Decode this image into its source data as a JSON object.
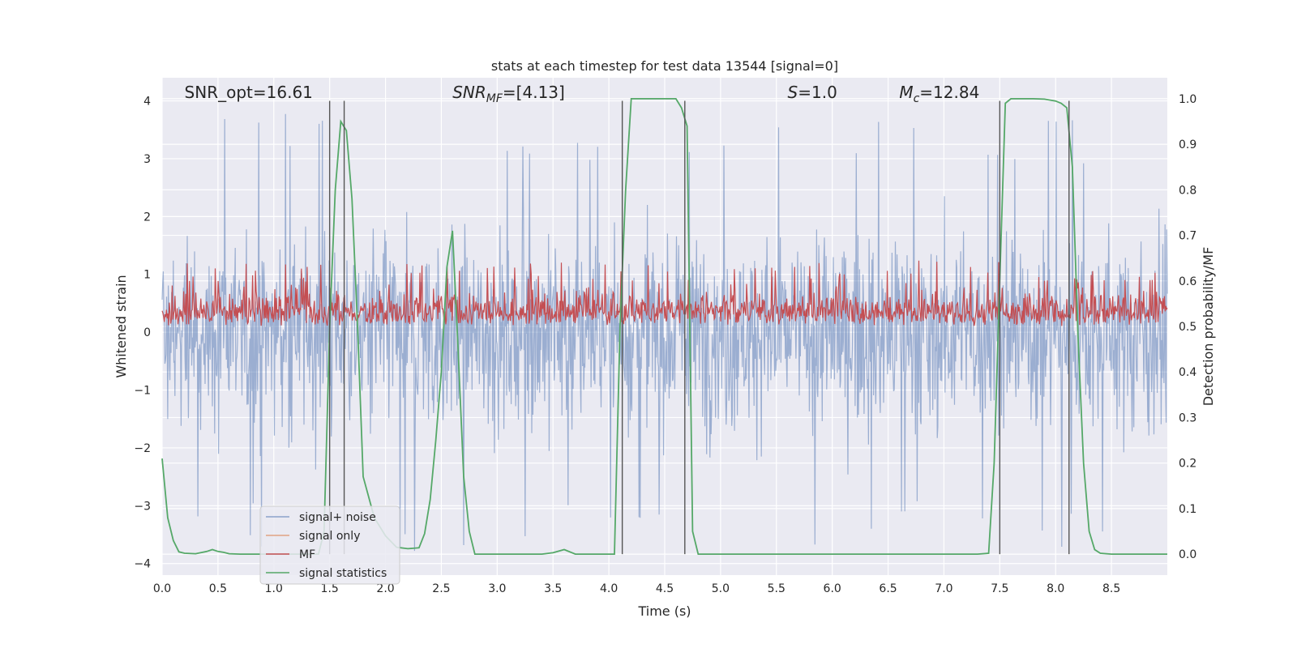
{
  "chart_data": {
    "type": "line",
    "title": "stats at each timestep for test data 13544 [signal=0]",
    "xlabel": "Time (s)",
    "ylabel_left": "Whitened strain",
    "ylabel_right": "Detection probability/MF",
    "xlim": [
      0.0,
      9.0
    ],
    "ylim_left": [
      -4.2,
      4.4
    ],
    "ylim_right": [
      -0.046,
      1.046
    ],
    "x_ticks": [
      "0.0",
      "0.5",
      "1.0",
      "1.5",
      "2.0",
      "2.5",
      "3.0",
      "3.5",
      "4.0",
      "4.5",
      "5.0",
      "5.5",
      "6.0",
      "6.5",
      "7.0",
      "7.5",
      "8.0",
      "8.5"
    ],
    "y_left_ticks": [
      "4",
      "3",
      "2",
      "1",
      "0",
      "−1",
      "−2",
      "−3",
      "−4"
    ],
    "y_right_ticks": [
      "1.0",
      "0.9",
      "0.8",
      "0.7",
      "0.6",
      "0.5",
      "0.4",
      "0.3",
      "0.2",
      "0.1",
      "0.0"
    ],
    "annotations": [
      {
        "text": "SNR_opt=16.61",
        "x": 0.2,
        "y": 4.15,
        "italic": false
      },
      {
        "text": "SNR_MF=[4.13]",
        "x": 2.6,
        "y": 4.15,
        "italic": true
      },
      {
        "text": "S=1.0",
        "x": 5.6,
        "y": 4.15,
        "italic": true
      },
      {
        "text": "M_c=12.84",
        "x": 6.6,
        "y": 4.15,
        "italic": true
      }
    ],
    "vertical_lines": [
      1.5,
      1.63,
      4.12,
      4.68,
      7.5,
      8.12
    ],
    "series": [
      {
        "name": "signal+ noise",
        "color": "#4c72b0",
        "alpha": 0.5,
        "axis": "left",
        "description": "whitened noise, amplitude roughly ±2.5, peaks to ±3.8"
      },
      {
        "name": "signal only",
        "color": "#dd8452",
        "axis": "left",
        "values": []
      },
      {
        "name": "MF",
        "color": "#c44e52",
        "axis": "right",
        "description": "matched filter output between 0.5 and 0.64"
      },
      {
        "name": "signal statistics",
        "color": "#55a868",
        "axis": "right",
        "x": [
          0.0,
          0.05,
          0.1,
          0.15,
          0.2,
          0.3,
          0.4,
          0.45,
          0.5,
          0.55,
          0.6,
          0.7,
          0.8,
          0.9,
          1.0,
          1.1,
          1.2,
          1.3,
          1.4,
          1.45,
          1.5,
          1.55,
          1.6,
          1.65,
          1.7,
          1.75,
          1.8,
          1.9,
          2.0,
          2.1,
          2.2,
          2.3,
          2.35,
          2.4,
          2.45,
          2.5,
          2.55,
          2.6,
          2.65,
          2.7,
          2.75,
          2.8,
          2.9,
          3.0,
          3.2,
          3.4,
          3.5,
          3.6,
          3.7,
          3.75,
          3.8,
          3.9,
          4.0,
          4.05,
          4.1,
          4.15,
          4.2,
          4.3,
          4.4,
          4.5,
          4.6,
          4.65,
          4.7,
          4.75,
          4.8,
          4.9,
          5.0,
          5.5,
          6.0,
          6.5,
          7.0,
          7.3,
          7.4,
          7.45,
          7.5,
          7.55,
          7.6,
          7.7,
          7.8,
          7.9,
          8.0,
          8.05,
          8.1,
          8.15,
          8.2,
          8.25,
          8.3,
          8.35,
          8.4,
          8.5,
          8.6,
          8.7,
          8.8,
          8.9,
          9.0
        ],
        "values": [
          0.21,
          0.08,
          0.03,
          0.005,
          0.002,
          0.001,
          0.006,
          0.01,
          0.006,
          0.004,
          0.001,
          0.0,
          0.0,
          0.0,
          0.0,
          0.0,
          0.0,
          0.0,
          0.0,
          0.05,
          0.5,
          0.8,
          0.95,
          0.93,
          0.78,
          0.5,
          0.17,
          0.08,
          0.04,
          0.015,
          0.012,
          0.014,
          0.045,
          0.12,
          0.25,
          0.4,
          0.63,
          0.71,
          0.45,
          0.17,
          0.05,
          0.0,
          0.0,
          0.0,
          0.0,
          0.0,
          0.003,
          0.01,
          0.0,
          0.0,
          0.0,
          0.0,
          0.0,
          0.0,
          0.5,
          0.8,
          1.0,
          1.0,
          1.0,
          1.0,
          1.0,
          0.98,
          0.94,
          0.05,
          0.0,
          0.0,
          0.0,
          0.0,
          0.0,
          0.0,
          0.0,
          0.0,
          0.002,
          0.2,
          0.6,
          0.99,
          1.0,
          1.0,
          1.0,
          0.999,
          0.995,
          0.99,
          0.98,
          0.85,
          0.48,
          0.2,
          0.05,
          0.01,
          0.002,
          0.0,
          0.0,
          0.0,
          0.0,
          0.0,
          0.0
        ]
      }
    ],
    "legend": {
      "location": "lower-left",
      "entries": [
        "signal+ noise",
        "signal only",
        "MF",
        "signal statistics"
      ]
    }
  }
}
